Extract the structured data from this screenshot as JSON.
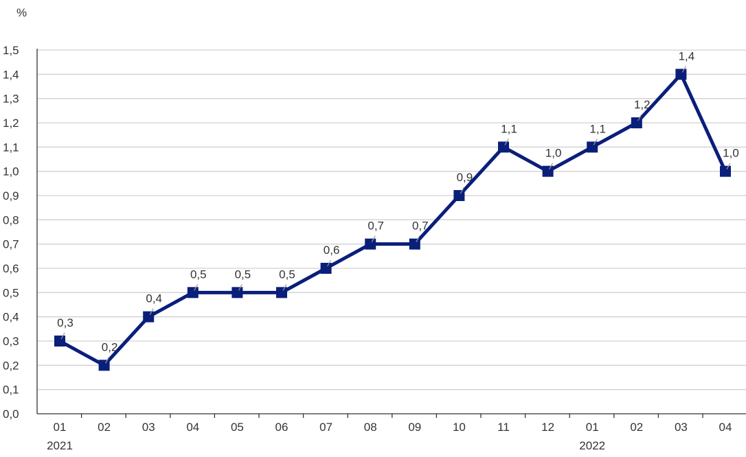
{
  "chart_data": {
    "type": "line",
    "title": "",
    "ylabel": "%",
    "xlabel": "",
    "ylim": [
      0,
      1.5
    ],
    "y_ticks": [
      "0,0",
      "0,1",
      "0,2",
      "0,3",
      "0,4",
      "0,5",
      "0,6",
      "0,7",
      "0,8",
      "0,9",
      "1,0",
      "1,1",
      "1,2",
      "1,3",
      "1,4",
      "1,5"
    ],
    "categories": [
      "01",
      "02",
      "03",
      "04",
      "05",
      "06",
      "07",
      "08",
      "09",
      "10",
      "11",
      "12",
      "01",
      "02",
      "03",
      "04"
    ],
    "year_labels": [
      {
        "year": "2021",
        "category_index": 0
      },
      {
        "year": "2022",
        "category_index": 12
      }
    ],
    "grid": true,
    "series": [
      {
        "color": "#0a1f7a",
        "values": [
          0.3,
          0.2,
          0.4,
          0.5,
          0.5,
          0.5,
          0.6,
          0.7,
          0.7,
          0.9,
          1.1,
          1.0,
          1.1,
          1.2,
          1.4,
          1.0
        ],
        "data_labels": [
          "0,3",
          "0,2",
          "0,4",
          "0,5",
          "0,5",
          "0,5",
          "0,6",
          "0,7",
          "0,7",
          "0,9",
          "1,1",
          "1,0",
          "1,1",
          "1,2",
          "1,4",
          "1,0"
        ]
      }
    ]
  }
}
